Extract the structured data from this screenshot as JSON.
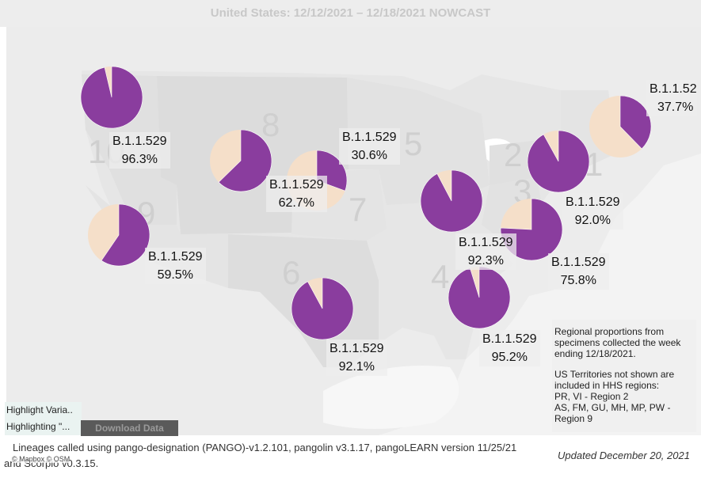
{
  "title": "United States: 12/12/2021 – 12/18/2021 NOWCAST",
  "colors": {
    "variant": "#8a3d9e",
    "other": "#f5dfc9",
    "region_fill": "#dedede",
    "land": "#ececec",
    "water": "#ffffff"
  },
  "regions": [
    {
      "number": "1",
      "variant": "B.1.1.52",
      "percent": "37.7%",
      "share": 0.377
    },
    {
      "number": "2",
      "variant": "B.1.1.529",
      "percent": "92.0%",
      "share": 0.92
    },
    {
      "number": "3",
      "variant": "B.1.1.529",
      "percent": "75.8%",
      "share": 0.758
    },
    {
      "number": "4",
      "variant": "B.1.1.529",
      "percent": "95.2%",
      "share": 0.952
    },
    {
      "number": "5",
      "variant": "B.1.1.529",
      "percent": "92.3%",
      "share": 0.923
    },
    {
      "number": "6",
      "variant": "B.1.1.529",
      "percent": "92.1%",
      "share": 0.921
    },
    {
      "number": "7",
      "variant": "B.1.1.529",
      "percent": "30.6%",
      "share": 0.306
    },
    {
      "number": "8",
      "variant": "B.1.1.529",
      "percent": "62.7%",
      "share": 0.627
    },
    {
      "number": "9",
      "variant": "B.1.1.529",
      "percent": "59.5%",
      "share": 0.595
    },
    {
      "number": "10",
      "variant": "B.1.1.529",
      "percent": "96.3%",
      "share": 0.963
    }
  ],
  "note": {
    "line1": "Regional proportions from specimens collected the week ending 12/18/2021.",
    "line2": "US Territories not shown are included in HHS regions:",
    "line3": "PR, VI - Region 2",
    "line4": "AS, FM, GU, MH, MP, PW - Region 9"
  },
  "highlight": {
    "label": "Highlight Varia..",
    "value": "Highlighting \"..."
  },
  "download_label": "Download Data",
  "footer": "Lineages called using pango-designation (PANGO)-v1.2.101, pangolin v3.1.17, pangoLEARN version 11/25/21",
  "footer_cont": "and Scorpio v0.3.15.",
  "attribution": "© Mapbox © OSM",
  "updated": "Updated December 20, 2021"
}
